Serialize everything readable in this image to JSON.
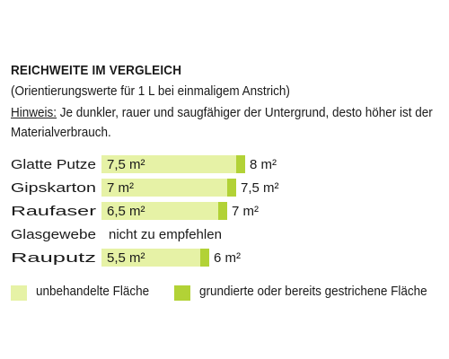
{
  "heading": "REICHWEITE IM VERGLEICH",
  "subheading": "(Orientierungswerte für 1 L bei einmaligem Anstrich)",
  "note": {
    "label": "Hinweis:",
    "text": " Je dunkler, rauer und saugfähiger der Untergrund, desto höher ist der Materialverbrauch."
  },
  "colors": {
    "light": "#e6f2a6",
    "dark": "#b2d236"
  },
  "legend": {
    "light": "unbehandelte Fläche",
    "dark": "grundierte oder bereits gestrichene Fläche"
  },
  "chart_data": {
    "type": "bar",
    "orientation": "horizontal",
    "categories": [
      "Glatte Putze",
      "Gipskarton",
      "Raufaser",
      "Glasgewebe",
      "Rauputz"
    ],
    "series": [
      {
        "name": "unbehandelte Fläche",
        "values": [
          7.5,
          7,
          6.5,
          null,
          5.5
        ],
        "labels": [
          "7,5 m²",
          "7 m²",
          "6,5 m²",
          "",
          "5,5 m²"
        ]
      },
      {
        "name": "grundierte oder bereits gestrichene Fläche",
        "values": [
          8,
          7.5,
          7,
          null,
          6
        ],
        "labels": [
          "8 m²",
          "7,5 m²",
          "7 m²",
          "",
          "6 m²"
        ]
      }
    ],
    "annotations": [
      {
        "category": "Glasgewebe",
        "text": "nicht zu empfehlen"
      }
    ]
  }
}
